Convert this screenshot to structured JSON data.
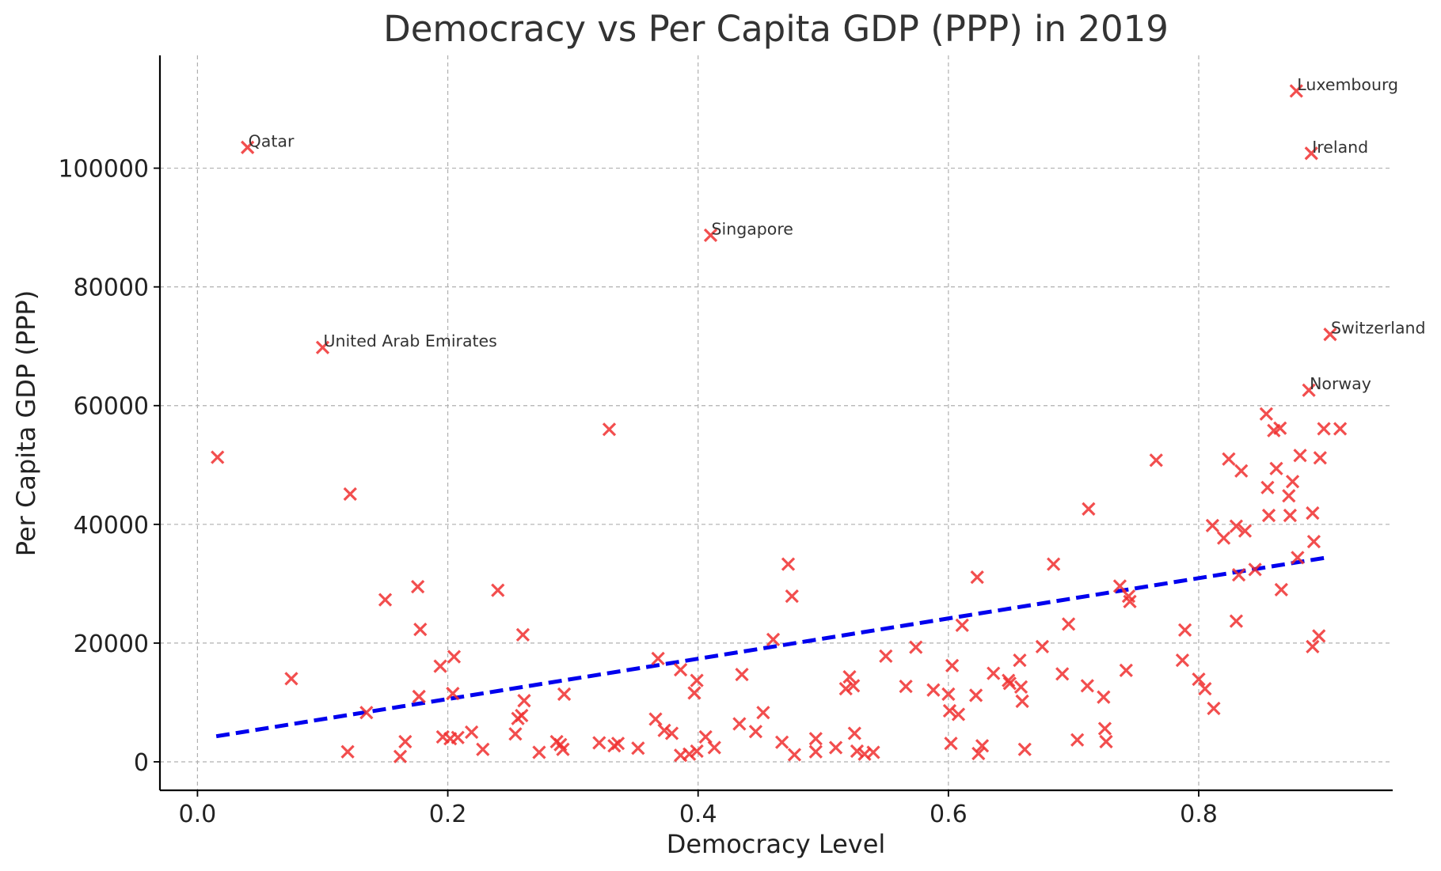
{
  "chart_data": {
    "type": "scatter",
    "title": "Democracy vs Per Capita GDP (PPP) in 2019",
    "xlabel": "Democracy Level",
    "ylabel": "Per Capita GDP (PPP)",
    "xlim": [
      -0.03,
      0.955
    ],
    "ylim": [
      -4800,
      119000
    ],
    "x_ticks": [
      0.0,
      0.2,
      0.4,
      0.6,
      0.8
    ],
    "x_tick_labels": [
      "0.0",
      "0.2",
      "0.4",
      "0.6",
      "0.8"
    ],
    "y_ticks": [
      0,
      20000,
      40000,
      60000,
      80000,
      100000
    ],
    "y_tick_labels": [
      "0",
      "20000",
      "40000",
      "60000",
      "80000",
      "100000"
    ],
    "grid": true,
    "marker": "x",
    "point_color": "#f03030",
    "trend_color": "#0000ee",
    "trendline": {
      "style": "dashed",
      "x": [
        0.015,
        0.905
      ],
      "y": [
        4300,
        34500
      ]
    },
    "annotations": [
      {
        "text": "Qatar",
        "x": 0.04,
        "y": 103500
      },
      {
        "text": "Singapore",
        "x": 0.41,
        "y": 88700
      },
      {
        "text": "United Arab Emirates",
        "x": 0.1,
        "y": 69800
      },
      {
        "text": "Luxembourg",
        "x": 0.878,
        "y": 113000
      },
      {
        "text": "Ireland",
        "x": 0.89,
        "y": 102500
      },
      {
        "text": "Switzerland",
        "x": 0.905,
        "y": 72000
      },
      {
        "text": "Norway",
        "x": 0.888,
        "y": 62600
      }
    ],
    "points": [
      [
        0.04,
        103500
      ],
      [
        0.41,
        88700
      ],
      [
        0.1,
        69800
      ],
      [
        0.878,
        113000
      ],
      [
        0.89,
        102500
      ],
      [
        0.905,
        72000
      ],
      [
        0.888,
        62600
      ],
      [
        0.016,
        51300
      ],
      [
        0.122,
        45100
      ],
      [
        0.329,
        56000
      ],
      [
        0.075,
        14000
      ],
      [
        0.12,
        1700
      ],
      [
        0.135,
        8300
      ],
      [
        0.15,
        27300
      ],
      [
        0.162,
        900
      ],
      [
        0.166,
        3400
      ],
      [
        0.176,
        29500
      ],
      [
        0.178,
        22300
      ],
      [
        0.177,
        11000
      ],
      [
        0.194,
        16100
      ],
      [
        0.196,
        4200
      ],
      [
        0.202,
        3900
      ],
      [
        0.205,
        17700
      ],
      [
        0.204,
        11500
      ],
      [
        0.208,
        4100
      ],
      [
        0.219,
        5000
      ],
      [
        0.228,
        2100
      ],
      [
        0.24,
        28900
      ],
      [
        0.254,
        4700
      ],
      [
        0.256,
        7300
      ],
      [
        0.259,
        7800
      ],
      [
        0.26,
        21400
      ],
      [
        0.261,
        10300
      ],
      [
        0.273,
        1600
      ],
      [
        0.287,
        3400
      ],
      [
        0.29,
        2900
      ],
      [
        0.292,
        2100
      ],
      [
        0.293,
        11400
      ],
      [
        0.321,
        3200
      ],
      [
        0.333,
        2700
      ],
      [
        0.336,
        3100
      ],
      [
        0.352,
        2300
      ],
      [
        0.366,
        7200
      ],
      [
        0.368,
        17400
      ],
      [
        0.373,
        5300
      ],
      [
        0.379,
        4800
      ],
      [
        0.386,
        15500
      ],
      [
        0.386,
        1100
      ],
      [
        0.393,
        1300
      ],
      [
        0.397,
        11600
      ],
      [
        0.399,
        13700
      ],
      [
        0.399,
        1800
      ],
      [
        0.406,
        4200
      ],
      [
        0.413,
        2400
      ],
      [
        0.433,
        6400
      ],
      [
        0.435,
        14700
      ],
      [
        0.446,
        5100
      ],
      [
        0.452,
        8300
      ],
      [
        0.46,
        20600
      ],
      [
        0.467,
        3300
      ],
      [
        0.472,
        33300
      ],
      [
        0.475,
        27900
      ],
      [
        0.477,
        1200
      ],
      [
        0.494,
        1700
      ],
      [
        0.494,
        3900
      ],
      [
        0.51,
        2400
      ],
      [
        0.518,
        12300
      ],
      [
        0.521,
        14300
      ],
      [
        0.524,
        12800
      ],
      [
        0.525,
        4800
      ],
      [
        0.527,
        1800
      ],
      [
        0.533,
        1300
      ],
      [
        0.54,
        1600
      ],
      [
        0.55,
        17800
      ],
      [
        0.566,
        12700
      ],
      [
        0.574,
        19300
      ],
      [
        0.588,
        12100
      ],
      [
        0.6,
        11400
      ],
      [
        0.601,
        8600
      ],
      [
        0.602,
        3100
      ],
      [
        0.603,
        16200
      ],
      [
        0.608,
        8000
      ],
      [
        0.611,
        23000
      ],
      [
        0.623,
        31100
      ],
      [
        0.622,
        11200
      ],
      [
        0.624,
        1400
      ],
      [
        0.627,
        2700
      ],
      [
        0.636,
        14900
      ],
      [
        0.648,
        13700
      ],
      [
        0.649,
        13200
      ],
      [
        0.657,
        17100
      ],
      [
        0.658,
        12600
      ],
      [
        0.659,
        10200
      ],
      [
        0.661,
        2100
      ],
      [
        0.675,
        19400
      ],
      [
        0.684,
        33300
      ],
      [
        0.691,
        14800
      ],
      [
        0.696,
        23200
      ],
      [
        0.703,
        3700
      ],
      [
        0.712,
        42600
      ],
      [
        0.711,
        12800
      ],
      [
        0.724,
        10900
      ],
      [
        0.725,
        5600
      ],
      [
        0.726,
        3400
      ],
      [
        0.737,
        29600
      ],
      [
        0.742,
        15400
      ],
      [
        0.744,
        27900
      ],
      [
        0.745,
        27000
      ],
      [
        0.766,
        50800
      ],
      [
        0.787,
        17100
      ],
      [
        0.789,
        22200
      ],
      [
        0.8,
        13900
      ],
      [
        0.805,
        12300
      ],
      [
        0.811,
        39800
      ],
      [
        0.812,
        9000
      ],
      [
        0.82,
        37700
      ],
      [
        0.824,
        51000
      ],
      [
        0.83,
        39700
      ],
      [
        0.83,
        23700
      ],
      [
        0.832,
        31500
      ],
      [
        0.834,
        49000
      ],
      [
        0.837,
        38900
      ],
      [
        0.845,
        32400
      ],
      [
        0.854,
        58600
      ],
      [
        0.855,
        46200
      ],
      [
        0.856,
        41500
      ],
      [
        0.86,
        55800
      ],
      [
        0.862,
        49400
      ],
      [
        0.865,
        56200
      ],
      [
        0.866,
        29000
      ],
      [
        0.872,
        44800
      ],
      [
        0.873,
        41500
      ],
      [
        0.875,
        47200
      ],
      [
        0.879,
        34400
      ],
      [
        0.881,
        51600
      ],
      [
        0.891,
        41900
      ],
      [
        0.891,
        19400
      ],
      [
        0.892,
        37100
      ],
      [
        0.896,
        21200
      ],
      [
        0.897,
        51200
      ],
      [
        0.9,
        56100
      ],
      [
        0.913,
        56100
      ]
    ]
  }
}
